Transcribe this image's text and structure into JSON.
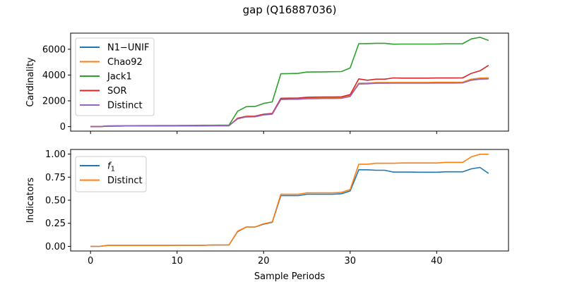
{
  "figure": {
    "title": "gap (Q16887036)",
    "xlabel": "Sample Periods"
  },
  "chart_data": [
    {
      "type": "line",
      "ylabel": "Cardinality",
      "xlim": [
        -2.3,
        48.3
      ],
      "ylim": [
        -350,
        7250
      ],
      "xticks": [
        0,
        10,
        20,
        30,
        40
      ],
      "xticklabels": [
        "",
        "",
        "",
        "",
        ""
      ],
      "yticks": [
        0,
        2000,
        4000,
        6000
      ],
      "yticklabels": [
        "0",
        "2000",
        "4000",
        "6000"
      ],
      "grid": false,
      "legend_position": "upper left",
      "x": [
        0,
        1,
        2,
        3,
        4,
        5,
        6,
        7,
        8,
        9,
        10,
        11,
        12,
        13,
        14,
        15,
        16,
        17,
        18,
        19,
        20,
        21,
        22,
        23,
        24,
        25,
        26,
        27,
        28,
        29,
        30,
        31,
        32,
        33,
        34,
        35,
        36,
        37,
        38,
        39,
        40,
        41,
        42,
        43,
        44,
        45,
        46
      ],
      "series": [
        {
          "name": "N1−UNIF",
          "color": "#1f77b4",
          "values": [
            0,
            0,
            40,
            45,
            48,
            50,
            52,
            55,
            58,
            60,
            62,
            64,
            66,
            68,
            70,
            72,
            72,
            620,
            770,
            780,
            920,
            980,
            2120,
            2130,
            2140,
            2180,
            2190,
            2200,
            2200,
            2210,
            2360,
            3320,
            3340,
            3380,
            3380,
            3390,
            3390,
            3390,
            3390,
            3390,
            3400,
            3400,
            3400,
            3410,
            3630,
            3710,
            3720
          ]
        },
        {
          "name": "Chao92",
          "color": "#ff7f0e",
          "values": [
            0,
            0,
            40,
            45,
            48,
            50,
            52,
            55,
            58,
            60,
            62,
            64,
            66,
            68,
            70,
            72,
            72,
            640,
            790,
            800,
            940,
            1000,
            2150,
            2160,
            2170,
            2210,
            2220,
            2230,
            2230,
            2240,
            2400,
            3360,
            3380,
            3420,
            3420,
            3430,
            3430,
            3430,
            3430,
            3430,
            3440,
            3440,
            3440,
            3450,
            3680,
            3760,
            3770
          ]
        },
        {
          "name": "Jack1",
          "color": "#2ca02c",
          "values": [
            0,
            0,
            60,
            65,
            68,
            70,
            74,
            78,
            82,
            86,
            90,
            94,
            98,
            102,
            106,
            110,
            112,
            1200,
            1550,
            1560,
            1800,
            1920,
            4100,
            4110,
            4130,
            4230,
            4240,
            4250,
            4260,
            4270,
            4550,
            6430,
            6440,
            6460,
            6460,
            6390,
            6400,
            6400,
            6400,
            6400,
            6400,
            6430,
            6430,
            6430,
            6800,
            6930,
            6680
          ]
        },
        {
          "name": "SOR",
          "color": "#d62728",
          "values": [
            0,
            0,
            40,
            45,
            48,
            50,
            52,
            55,
            58,
            60,
            62,
            64,
            66,
            68,
            70,
            72,
            72,
            650,
            800,
            810,
            960,
            1020,
            2200,
            2210,
            2220,
            2280,
            2290,
            2300,
            2300,
            2310,
            2480,
            3700,
            3600,
            3680,
            3680,
            3780,
            3760,
            3760,
            3760,
            3760,
            3770,
            3770,
            3770,
            3780,
            4130,
            4330,
            4750
          ]
        },
        {
          "name": "Distinct",
          "color": "#9467bd",
          "values": [
            0,
            0,
            40,
            45,
            48,
            50,
            52,
            55,
            58,
            60,
            62,
            64,
            66,
            68,
            70,
            72,
            72,
            600,
            750,
            760,
            900,
            960,
            2100,
            2110,
            2120,
            2160,
            2170,
            2180,
            2180,
            2190,
            2340,
            3300,
            3320,
            3360,
            3360,
            3370,
            3370,
            3370,
            3370,
            3370,
            3380,
            3380,
            3380,
            3390,
            3600,
            3680,
            3700
          ]
        }
      ]
    },
    {
      "type": "line",
      "ylabel": "Indicators",
      "xlim": [
        -2.3,
        48.3
      ],
      "ylim": [
        -0.05,
        1.05
      ],
      "xticks": [
        0,
        10,
        20,
        30,
        40
      ],
      "xticklabels": [
        "0",
        "10",
        "20",
        "30",
        "40"
      ],
      "yticks": [
        0,
        0.25,
        0.5,
        0.75,
        1.0
      ],
      "yticklabels": [
        "0.00",
        "0.25",
        "0.50",
        "0.75",
        "1.00"
      ],
      "grid": false,
      "legend_position": "upper left",
      "x": [
        0,
        1,
        2,
        3,
        4,
        5,
        6,
        7,
        8,
        9,
        10,
        11,
        12,
        13,
        14,
        15,
        16,
        17,
        18,
        19,
        20,
        21,
        22,
        23,
        24,
        25,
        26,
        27,
        28,
        29,
        30,
        31,
        32,
        33,
        34,
        35,
        36,
        37,
        38,
        39,
        40,
        41,
        42,
        43,
        44,
        45,
        46
      ],
      "series": [
        {
          "name": "f_1",
          "label_main": "f",
          "label_sub": "1",
          "color": "#1f77b4",
          "values": [
            0.0,
            0.0,
            0.01,
            0.01,
            0.01,
            0.01,
            0.01,
            0.01,
            0.01,
            0.01,
            0.012,
            0.012,
            0.012,
            0.012,
            0.014,
            0.015,
            0.015,
            0.16,
            0.21,
            0.21,
            0.24,
            0.26,
            0.55,
            0.55,
            0.55,
            0.565,
            0.565,
            0.565,
            0.565,
            0.57,
            0.6,
            0.83,
            0.83,
            0.825,
            0.825,
            0.805,
            0.805,
            0.805,
            0.803,
            0.803,
            0.803,
            0.808,
            0.808,
            0.808,
            0.84,
            0.855,
            0.79
          ]
        },
        {
          "name": "Distinct",
          "color": "#ff7f0e",
          "values": [
            0.0,
            0.0,
            0.01,
            0.01,
            0.01,
            0.01,
            0.01,
            0.01,
            0.01,
            0.01,
            0.012,
            0.012,
            0.012,
            0.012,
            0.014,
            0.015,
            0.015,
            0.165,
            0.21,
            0.21,
            0.245,
            0.265,
            0.565,
            0.565,
            0.565,
            0.58,
            0.58,
            0.58,
            0.58,
            0.585,
            0.615,
            0.89,
            0.89,
            0.9,
            0.9,
            0.9,
            0.903,
            0.903,
            0.903,
            0.903,
            0.903,
            0.91,
            0.91,
            0.91,
            0.97,
            0.998,
            0.998
          ]
        }
      ]
    }
  ]
}
